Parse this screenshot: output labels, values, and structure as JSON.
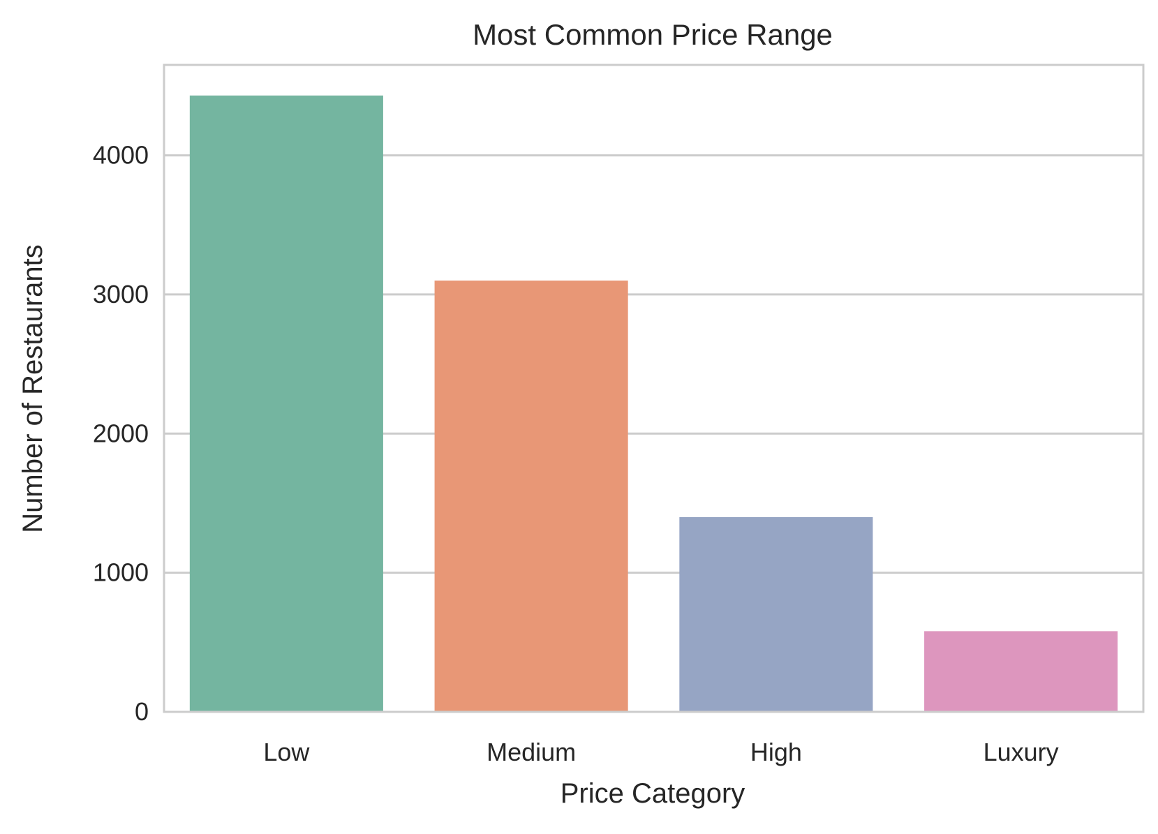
{
  "chart_data": {
    "type": "bar",
    "title": "Most Common Price Range",
    "xlabel": "Price Category",
    "ylabel": "Number of Restaurants",
    "categories": [
      "Low",
      "Medium",
      "High",
      "Luxury"
    ],
    "values": [
      4430,
      3100,
      1400,
      580
    ],
    "colors": [
      "#74b5a0",
      "#e89776",
      "#96a5c4",
      "#dd96be"
    ],
    "ylim": [
      0,
      4650
    ],
    "yticks": [
      0,
      1000,
      2000,
      3000,
      4000
    ],
    "ytick_labels": [
      "0",
      "1000",
      "2000",
      "3000",
      "4000"
    ],
    "grid": "y",
    "grid_color": "#cccccc",
    "frame_color": "#cccccc"
  }
}
